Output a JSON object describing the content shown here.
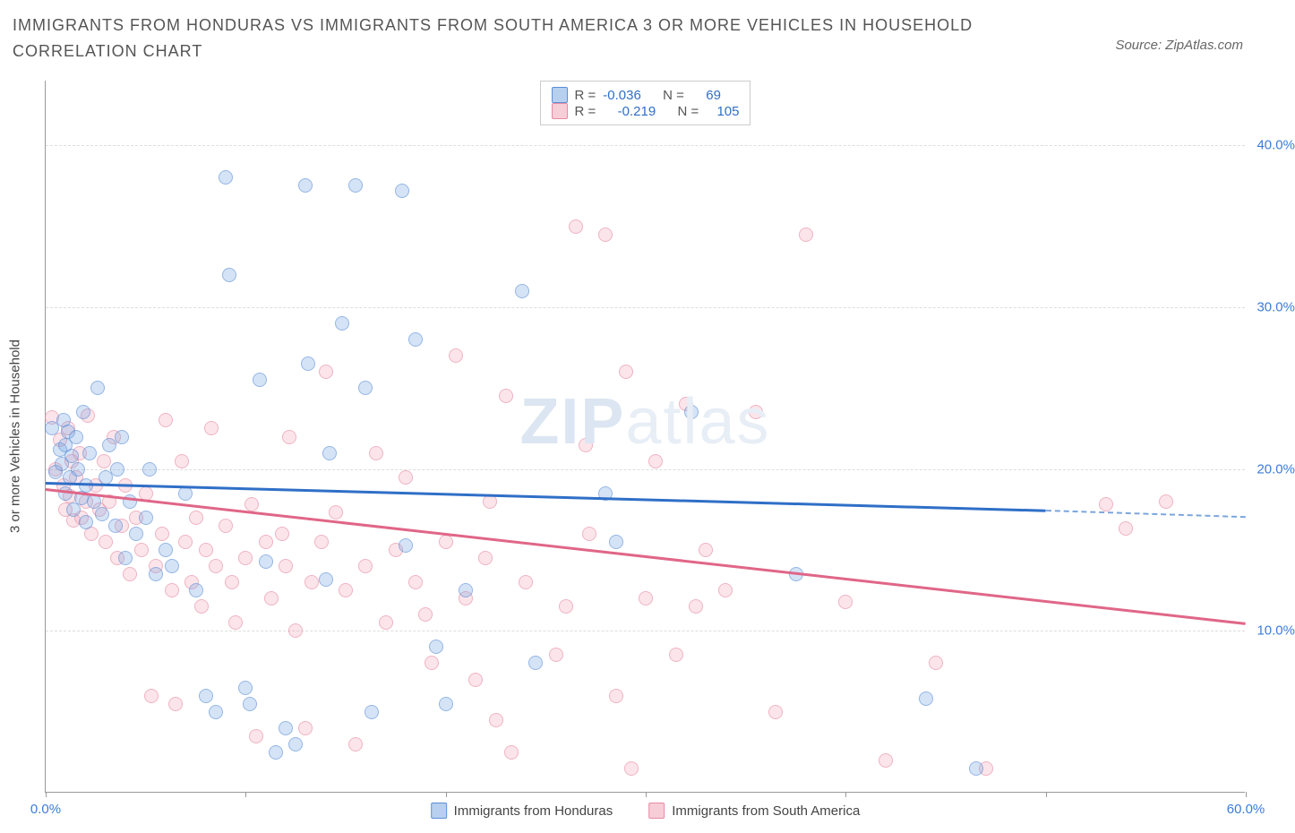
{
  "title": "IMMIGRANTS FROM HONDURAS VS IMMIGRANTS FROM SOUTH AMERICA 3 OR MORE VEHICLES IN HOUSEHOLD CORRELATION CHART",
  "source_label": "Source: ZipAtlas.com",
  "yaxis_title": "3 or more Vehicles in Household",
  "watermark": {
    "bold": "ZIP",
    "rest": "atlas"
  },
  "chart": {
    "type": "scatter",
    "xlim": [
      0,
      60
    ],
    "ylim": [
      0,
      44
    ],
    "xticks": [
      0,
      10,
      20,
      30,
      40,
      50,
      60
    ],
    "xtick_labels": [
      "0.0%",
      "",
      "",
      "",
      "",
      "",
      "60.0%"
    ],
    "yticks": [
      10,
      20,
      30,
      40
    ],
    "ytick_labels": [
      "10.0%",
      "20.0%",
      "30.0%",
      "40.0%"
    ],
    "grid_color": "#dddddd",
    "background_color": "#ffffff",
    "marker_size": 16
  },
  "legend_top": {
    "rows": [
      {
        "swatch": "a",
        "r_label": "R =",
        "r_value": "-0.036",
        "n_label": "N =",
        "n_value": "69"
      },
      {
        "swatch": "b",
        "r_label": "R =",
        "r_value": "-0.219",
        "n_label": "N =",
        "n_value": "105"
      }
    ]
  },
  "legend_bottom": {
    "items": [
      {
        "swatch": "a",
        "label": "Immigrants from Honduras"
      },
      {
        "swatch": "b",
        "label": "Immigrants from South America"
      }
    ]
  },
  "series": {
    "a": {
      "color_fill": "rgba(112,161,226,0.45)",
      "color_stroke": "#5b8fd6",
      "trend_color": "#2f6fc7",
      "trend": {
        "x1": 0,
        "y1": 19.2,
        "x2": 50,
        "y2": 17.5,
        "dash_to_x": 60,
        "dash_to_y": 17.1
      },
      "points": [
        [
          0.3,
          22.5
        ],
        [
          0.5,
          19.8
        ],
        [
          0.7,
          21.2
        ],
        [
          0.8,
          20.3
        ],
        [
          0.9,
          23.0
        ],
        [
          1.0,
          18.5
        ],
        [
          1.0,
          21.5
        ],
        [
          1.1,
          22.3
        ],
        [
          1.2,
          19.5
        ],
        [
          1.3,
          20.8
        ],
        [
          1.4,
          17.5
        ],
        [
          1.5,
          22.0
        ],
        [
          1.6,
          20.0
        ],
        [
          1.8,
          18.2
        ],
        [
          1.9,
          23.5
        ],
        [
          2.0,
          16.7
        ],
        [
          2.0,
          19.0
        ],
        [
          2.2,
          21.0
        ],
        [
          2.4,
          18.0
        ],
        [
          2.6,
          25.0
        ],
        [
          2.8,
          17.2
        ],
        [
          3.0,
          19.5
        ],
        [
          3.2,
          21.5
        ],
        [
          3.5,
          16.5
        ],
        [
          3.6,
          20.0
        ],
        [
          3.8,
          22.0
        ],
        [
          4.0,
          14.5
        ],
        [
          4.2,
          18.0
        ],
        [
          4.5,
          16.0
        ],
        [
          5.0,
          17.0
        ],
        [
          5.2,
          20.0
        ],
        [
          5.5,
          13.5
        ],
        [
          6.0,
          15.0
        ],
        [
          6.3,
          14.0
        ],
        [
          7.0,
          18.5
        ],
        [
          7.5,
          12.5
        ],
        [
          8.0,
          6.0
        ],
        [
          8.5,
          5.0
        ],
        [
          9.0,
          38.0
        ],
        [
          9.2,
          32.0
        ],
        [
          10.0,
          6.5
        ],
        [
          10.2,
          5.5
        ],
        [
          10.7,
          25.5
        ],
        [
          11.0,
          14.3
        ],
        [
          11.5,
          2.5
        ],
        [
          12.0,
          4.0
        ],
        [
          12.5,
          3.0
        ],
        [
          13.0,
          37.5
        ],
        [
          13.1,
          26.5
        ],
        [
          14.0,
          13.2
        ],
        [
          14.2,
          21.0
        ],
        [
          14.8,
          29.0
        ],
        [
          15.5,
          37.5
        ],
        [
          16.0,
          25.0
        ],
        [
          16.3,
          5.0
        ],
        [
          17.8,
          37.2
        ],
        [
          18.0,
          15.3
        ],
        [
          18.5,
          28.0
        ],
        [
          19.5,
          9.0
        ],
        [
          20.0,
          5.5
        ],
        [
          21.0,
          12.5
        ],
        [
          23.8,
          31.0
        ],
        [
          24.5,
          8.0
        ],
        [
          28.0,
          18.5
        ],
        [
          28.5,
          15.5
        ],
        [
          32.3,
          23.5
        ],
        [
          37.5,
          13.5
        ],
        [
          44.0,
          5.8
        ],
        [
          46.5,
          1.5
        ]
      ]
    },
    "b": {
      "color_fill": "rgba(240,155,175,0.4)",
      "color_stroke": "#e78ba3",
      "trend_color": "#e06688",
      "trend": {
        "x1": 0,
        "y1": 18.8,
        "x2": 60,
        "y2": 10.5
      },
      "points": [
        [
          0.3,
          23.2
        ],
        [
          0.5,
          20.0
        ],
        [
          0.7,
          21.8
        ],
        [
          0.9,
          19.0
        ],
        [
          1.0,
          17.5
        ],
        [
          1.1,
          22.5
        ],
        [
          1.2,
          18.3
        ],
        [
          1.3,
          20.5
        ],
        [
          1.4,
          16.8
        ],
        [
          1.5,
          19.5
        ],
        [
          1.7,
          21.0
        ],
        [
          1.8,
          17.0
        ],
        [
          2.0,
          18.0
        ],
        [
          2.1,
          23.3
        ],
        [
          2.3,
          16.0
        ],
        [
          2.5,
          19.0
        ],
        [
          2.7,
          17.5
        ],
        [
          2.9,
          20.5
        ],
        [
          3.0,
          15.5
        ],
        [
          3.2,
          18.0
        ],
        [
          3.4,
          22.0
        ],
        [
          3.6,
          14.5
        ],
        [
          3.8,
          16.5
        ],
        [
          4.0,
          19.0
        ],
        [
          4.2,
          13.5
        ],
        [
          4.5,
          17.0
        ],
        [
          4.8,
          15.0
        ],
        [
          5.0,
          18.5
        ],
        [
          5.3,
          6.0
        ],
        [
          5.5,
          14.0
        ],
        [
          5.8,
          16.0
        ],
        [
          6.0,
          23.0
        ],
        [
          6.3,
          12.5
        ],
        [
          6.5,
          5.5
        ],
        [
          7.0,
          15.5
        ],
        [
          7.3,
          13.0
        ],
        [
          7.5,
          17.0
        ],
        [
          7.8,
          11.5
        ],
        [
          8.0,
          15.0
        ],
        [
          8.3,
          22.5
        ],
        [
          8.5,
          14.0
        ],
        [
          9.0,
          16.5
        ],
        [
          9.3,
          13.0
        ],
        [
          9.5,
          10.5
        ],
        [
          10.0,
          14.5
        ],
        [
          10.3,
          17.8
        ],
        [
          10.5,
          3.5
        ],
        [
          11.0,
          15.5
        ],
        [
          11.3,
          12.0
        ],
        [
          11.8,
          16.0
        ],
        [
          12.0,
          14.0
        ],
        [
          12.5,
          10.0
        ],
        [
          13.0,
          4.0
        ],
        [
          13.3,
          13.0
        ],
        [
          13.8,
          15.5
        ],
        [
          14.0,
          26.0
        ],
        [
          14.5,
          17.3
        ],
        [
          15.0,
          12.5
        ],
        [
          15.5,
          3.0
        ],
        [
          16.0,
          14.0
        ],
        [
          16.5,
          21.0
        ],
        [
          17.0,
          10.5
        ],
        [
          17.5,
          15.0
        ],
        [
          18.0,
          19.5
        ],
        [
          18.5,
          13.0
        ],
        [
          19.0,
          11.0
        ],
        [
          19.3,
          8.0
        ],
        [
          20.0,
          15.5
        ],
        [
          20.5,
          27.0
        ],
        [
          21.0,
          12.0
        ],
        [
          21.5,
          7.0
        ],
        [
          22.0,
          14.5
        ],
        [
          22.5,
          4.5
        ],
        [
          23.0,
          24.5
        ],
        [
          23.3,
          2.5
        ],
        [
          24.0,
          13.0
        ],
        [
          25.5,
          8.5
        ],
        [
          26.0,
          11.5
        ],
        [
          26.5,
          35.0
        ],
        [
          27.0,
          21.5
        ],
        [
          27.2,
          16.0
        ],
        [
          28.0,
          34.5
        ],
        [
          28.5,
          6.0
        ],
        [
          29.0,
          26.0
        ],
        [
          29.3,
          1.5
        ],
        [
          30.0,
          12.0
        ],
        [
          30.5,
          20.5
        ],
        [
          31.5,
          8.5
        ],
        [
          32.0,
          24.0
        ],
        [
          32.5,
          11.5
        ],
        [
          34.0,
          12.5
        ],
        [
          35.5,
          23.5
        ],
        [
          36.5,
          5.0
        ],
        [
          38.0,
          34.5
        ],
        [
          40.0,
          11.8
        ],
        [
          42.0,
          2.0
        ],
        [
          44.5,
          8.0
        ],
        [
          47.0,
          1.5
        ],
        [
          53.0,
          17.8
        ],
        [
          54.0,
          16.3
        ],
        [
          56.0,
          18.0
        ],
        [
          33.0,
          15.0
        ],
        [
          22.2,
          18.0
        ],
        [
          12.2,
          22.0
        ],
        [
          6.8,
          20.5
        ]
      ]
    }
  }
}
